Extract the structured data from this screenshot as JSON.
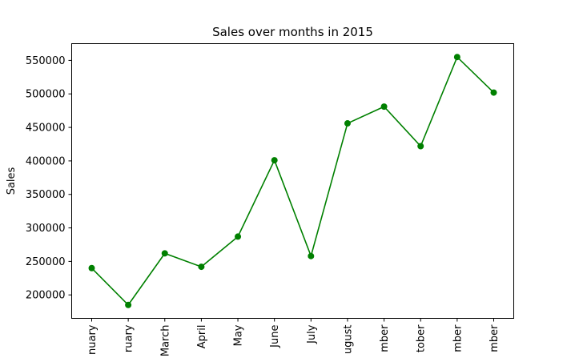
{
  "chart_data": {
    "type": "line",
    "title": "Sales over months in 2015",
    "xlabel": "",
    "ylabel": "Sales",
    "categories": [
      "January",
      "February",
      "March",
      "April",
      "May",
      "June",
      "July",
      "August",
      "September",
      "October",
      "November",
      "December"
    ],
    "category_labels_visible": [
      "nuary",
      "ruary",
      "March",
      "April",
      "May",
      "June",
      "July",
      "ugust",
      "mber",
      "tober",
      "mber",
      "mber"
    ],
    "series": [
      {
        "values": [
          240000,
          185000,
          262000,
          242000,
          287000,
          401000,
          258000,
          456000,
          481000,
          422000,
          555000,
          502000
        ],
        "color": "#008000",
        "marker": "circle"
      }
    ],
    "ylim": [
      165000,
      575000
    ],
    "yticks": [
      200000,
      250000,
      300000,
      350000,
      400000,
      450000,
      500000,
      550000
    ],
    "ytick_labels": [
      "200000",
      "250000",
      "300000",
      "350000",
      "400000",
      "450000",
      "500000",
      "550000"
    ],
    "grid": false,
    "legend": "none"
  }
}
